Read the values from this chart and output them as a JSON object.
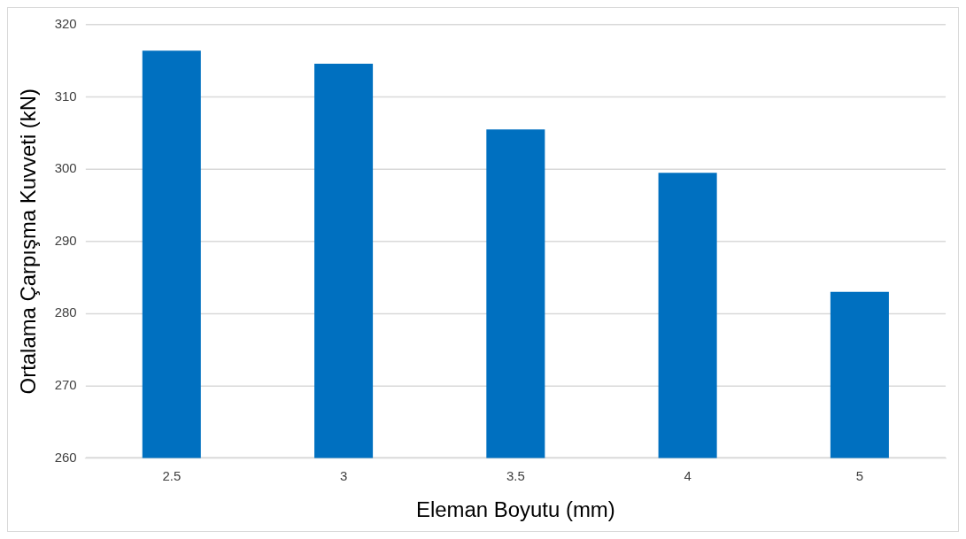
{
  "chart_data": {
    "type": "bar",
    "xlabel": "Eleman Boyutu (mm)",
    "ylabel": "Ortalama Çarpışma Kuvveti (kN)",
    "categories": [
      "2.5",
      "3",
      "3.5",
      "4",
      "5"
    ],
    "values": [
      316.4,
      314.6,
      305.5,
      299.5,
      283
    ],
    "color": "#0070c0",
    "ylim": [
      260,
      320
    ],
    "yticks": [
      260,
      270,
      280,
      290,
      300,
      310,
      320
    ],
    "grid": "y",
    "legend": false
  }
}
